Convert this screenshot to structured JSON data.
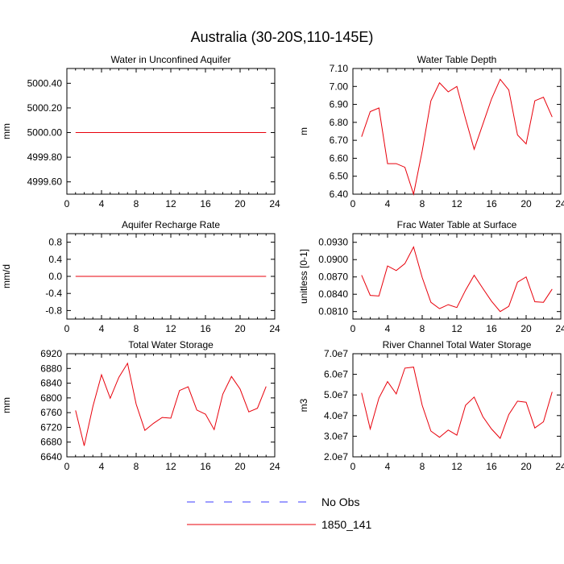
{
  "title": "Australia (30-20S,110-145E)",
  "legend": [
    {
      "label": "No Obs",
      "color": "#3b3bff",
      "dash": true
    },
    {
      "label": "1850_141",
      "color": "#e8000b",
      "dash": false
    }
  ],
  "x_ticks": [
    0,
    4,
    8,
    12,
    16,
    20,
    24
  ],
  "chart_data": [
    {
      "type": "line",
      "title": "Water in Unconfined Aquifer",
      "ylabel": "mm",
      "xlim": [
        0,
        24
      ],
      "ylim": [
        4999.5,
        5000.52
      ],
      "y_ticks": [
        5000.4,
        5000.2,
        5000.0,
        4999.8,
        4999.6
      ],
      "y_tick_labels": [
        "5000.40",
        "5000.20",
        "5000.00",
        "4999.80",
        "4999.60"
      ],
      "x": [
        1,
        23
      ],
      "series": [
        {
          "name": "1850_141",
          "values": [
            5000.0,
            5000.0
          ]
        }
      ]
    },
    {
      "type": "line",
      "title": "Water Table Depth",
      "ylabel": "m",
      "xlim": [
        0,
        24
      ],
      "ylim": [
        6.4,
        7.1
      ],
      "y_ticks": [
        7.1,
        7.0,
        6.9,
        6.8,
        6.7,
        6.6,
        6.5,
        6.4
      ],
      "y_tick_labels": [
        "7.10",
        "7.00",
        "6.90",
        "6.80",
        "6.70",
        "6.60",
        "6.50",
        "6.40"
      ],
      "x": [
        1,
        2,
        3,
        4,
        5,
        6,
        7,
        8,
        9,
        10,
        11,
        12,
        13,
        14,
        15,
        16,
        17,
        18,
        19,
        20,
        21,
        22,
        23
      ],
      "series": [
        {
          "name": "1850_141",
          "values": [
            6.72,
            6.86,
            6.88,
            6.57,
            6.57,
            6.55,
            6.4,
            6.64,
            6.92,
            7.02,
            6.97,
            7.0,
            6.82,
            6.65,
            6.79,
            6.93,
            7.04,
            6.98,
            6.73,
            6.68,
            6.92,
            6.94,
            6.83
          ]
        }
      ]
    },
    {
      "type": "line",
      "title": "Aquifer Recharge Rate",
      "ylabel": "mm/d",
      "xlim": [
        0,
        24
      ],
      "ylim": [
        -1.0,
        1.0
      ],
      "y_ticks": [
        0.8,
        0.4,
        0.0,
        -0.4,
        -0.8
      ],
      "y_tick_labels": [
        "0.8",
        "0.4",
        "0.0",
        "-0.4",
        "-0.8"
      ],
      "x": [
        1,
        23
      ],
      "series": [
        {
          "name": "1850_141",
          "values": [
            0.0,
            0.0
          ]
        }
      ]
    },
    {
      "type": "line",
      "title": "Frac Water Table at Surface",
      "ylabel": "unitless [0-1]",
      "xlim": [
        0,
        24
      ],
      "ylim": [
        0.0797,
        0.0945
      ],
      "y_ticks": [
        0.093,
        0.09,
        0.087,
        0.084,
        0.081
      ],
      "y_tick_labels": [
        "0.0930",
        "0.0900",
        "0.0870",
        "0.0840",
        "0.0810"
      ],
      "x": [
        1,
        2,
        3,
        4,
        5,
        6,
        7,
        8,
        9,
        10,
        11,
        12,
        13,
        14,
        15,
        16,
        17,
        18,
        19,
        20,
        21,
        22,
        23
      ],
      "series": [
        {
          "name": "1850_141",
          "values": [
            0.0873,
            0.0838,
            0.0837,
            0.0889,
            0.0881,
            0.0893,
            0.0922,
            0.0869,
            0.0826,
            0.0815,
            0.0822,
            0.0817,
            0.0847,
            0.0873,
            0.085,
            0.0828,
            0.081,
            0.0819,
            0.0861,
            0.087,
            0.0827,
            0.0826,
            0.0849
          ]
        }
      ]
    },
    {
      "type": "line",
      "title": "Total Water Storage",
      "ylabel": "mm",
      "xlim": [
        0,
        24
      ],
      "ylim": [
        6640,
        6920
      ],
      "y_ticks": [
        6920,
        6880,
        6840,
        6800,
        6760,
        6720,
        6680,
        6640
      ],
      "y_tick_labels": [
        "6920",
        "6880",
        "6840",
        "6800",
        "6760",
        "6720",
        "6680",
        "6640"
      ],
      "x": [
        1,
        2,
        3,
        4,
        5,
        6,
        7,
        8,
        9,
        10,
        11,
        12,
        13,
        14,
        15,
        16,
        17,
        18,
        19,
        20,
        21,
        22,
        23
      ],
      "series": [
        {
          "name": "1850_141",
          "values": [
            6766,
            6670,
            6777,
            6863,
            6799,
            6856,
            6894,
            6783,
            6712,
            6731,
            6747,
            6745,
            6820,
            6830,
            6767,
            6756,
            6714,
            6810,
            6858,
            6824,
            6762,
            6772,
            6831
          ]
        }
      ]
    },
    {
      "type": "line",
      "title": "River Channel Total Water Storage",
      "ylabel": "m3",
      "xlim": [
        0,
        24
      ],
      "ylim": [
        20000000.0,
        70000000.0
      ],
      "y_ticks": [
        70000000.0,
        60000000.0,
        50000000.0,
        40000000.0,
        30000000.0,
        20000000.0
      ],
      "y_tick_labels": [
        "7.0e7",
        "6.0e7",
        "5.0e7",
        "4.0e7",
        "3.0e7",
        "2.0e7"
      ],
      "x": [
        1,
        2,
        3,
        4,
        5,
        6,
        7,
        8,
        9,
        10,
        11,
        12,
        13,
        14,
        15,
        16,
        17,
        18,
        19,
        20,
        21,
        22,
        23
      ],
      "series": [
        {
          "name": "1850_141",
          "values": [
            51000000.0,
            33500000.0,
            48500000.0,
            56500000.0,
            50500000.0,
            63000000.0,
            63500000.0,
            45000000.0,
            32500000.0,
            29500000.0,
            33000000.0,
            30500000.0,
            45000000.0,
            49000000.0,
            39500000.0,
            33500000.0,
            29000000.0,
            40500000.0,
            47000000.0,
            46500000.0,
            34000000.0,
            37000000.0,
            51500000.0
          ]
        }
      ]
    }
  ]
}
